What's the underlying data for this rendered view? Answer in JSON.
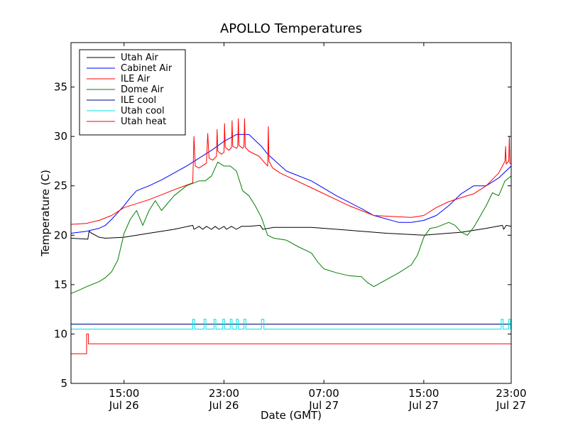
{
  "chart_data": {
    "type": "line",
    "title": "APOLLO Temperatures",
    "xlabel": "Date (GMT)",
    "ylabel": "Temperature (C)",
    "x_unit": "hours since Jul 26 00:00 GMT",
    "xlim": [
      10.75,
      46.0
    ],
    "ylim": [
      5,
      39.5
    ],
    "yticks": [
      5,
      10,
      15,
      20,
      25,
      30,
      35
    ],
    "xticks": [
      {
        "value": 15,
        "line1": "15:00",
        "line2": "Jul 26"
      },
      {
        "value": 23,
        "line1": "23:00",
        "line2": "Jul 26"
      },
      {
        "value": 31,
        "line1": "07:00",
        "line2": "Jul 27"
      },
      {
        "value": 39,
        "line1": "15:00",
        "line2": "Jul 27"
      },
      {
        "value": 47,
        "line1": "23:00",
        "line2": "Jul 27"
      }
    ],
    "grid": false,
    "legend_position": "top-left",
    "series": [
      {
        "name": "Utah Air",
        "color": "#000000",
        "x": [
          10.75,
          12.1,
          12.2,
          12.4,
          13.0,
          13.5,
          15.0,
          17.0,
          19.0,
          20.5,
          20.6,
          21.0,
          21.3,
          21.6,
          22.0,
          22.3,
          22.6,
          23.0,
          23.2,
          23.6,
          24.0,
          24.4,
          25.0,
          25.9,
          26.1,
          27.0,
          30.0,
          33.0,
          36.0,
          39.0,
          42.0,
          44.0,
          45.3,
          45.4,
          45.6,
          46.0
        ],
        "y": [
          19.7,
          19.6,
          20.4,
          20.2,
          19.8,
          19.7,
          19.8,
          20.2,
          20.6,
          21.0,
          20.6,
          20.9,
          20.6,
          20.9,
          20.6,
          20.9,
          20.6,
          20.9,
          20.6,
          20.9,
          20.6,
          20.9,
          20.9,
          21.0,
          20.6,
          20.8,
          20.8,
          20.5,
          20.2,
          20.0,
          20.3,
          20.7,
          21.0,
          20.6,
          21.0,
          20.9
        ]
      },
      {
        "name": "Cabinet Air",
        "color": "#0000ff",
        "x": [
          10.75,
          12.0,
          13.0,
          13.5,
          14.0,
          15.0,
          15.5,
          16.0,
          17.0,
          18.0,
          19.0,
          20.0,
          21.0,
          22.0,
          23.0,
          24.0,
          25.0,
          25.5,
          26.0,
          26.5,
          28.0,
          30.0,
          32.0,
          34.0,
          35.0,
          37.0,
          38.0,
          39.0,
          40.0,
          41.0,
          42.0,
          43.0,
          44.0,
          45.0,
          46.0
        ],
        "y": [
          20.2,
          20.4,
          20.7,
          21.0,
          21.6,
          23.0,
          23.8,
          24.5,
          25.0,
          25.6,
          26.3,
          27.0,
          27.8,
          28.6,
          29.5,
          30.2,
          30.2,
          29.6,
          29.0,
          28.2,
          26.5,
          25.5,
          24.0,
          22.7,
          22.0,
          21.3,
          21.3,
          21.5,
          22.0,
          23.0,
          24.2,
          25.0,
          25.0,
          25.8,
          27.0
        ]
      },
      {
        "name": "ILE Air",
        "color": "#ff0000",
        "x": [
          10.75,
          12.0,
          13.0,
          14.0,
          15.0,
          16.0,
          17.0,
          18.0,
          19.0,
          20.5,
          20.6,
          20.7,
          21.0,
          21.6,
          21.7,
          21.8,
          22.1,
          22.4,
          22.45,
          22.5,
          22.8,
          23.0,
          23.05,
          23.1,
          23.4,
          23.6,
          23.65,
          23.7,
          24.0,
          24.1,
          24.15,
          24.2,
          24.5,
          24.6,
          24.65,
          24.7,
          25.0,
          25.8,
          26.5,
          26.55,
          26.6,
          26.9,
          27.5,
          30.0,
          33.0,
          35.0,
          38.0,
          39.0,
          40.0,
          41.0,
          42.0,
          43.0,
          44.0,
          45.0,
          45.5,
          45.55,
          45.6,
          45.8,
          45.85,
          45.9,
          46.0
        ],
        "y": [
          21.1,
          21.2,
          21.5,
          22.0,
          22.8,
          23.2,
          23.6,
          24.1,
          24.6,
          25.3,
          30.0,
          27.0,
          26.8,
          27.3,
          30.3,
          27.8,
          27.6,
          28.0,
          30.7,
          28.5,
          28.2,
          28.4,
          31.3,
          28.9,
          28.6,
          28.9,
          31.6,
          29.0,
          28.8,
          29.0,
          31.8,
          29.1,
          28.8,
          29.0,
          31.8,
          28.9,
          28.5,
          28.0,
          27.0,
          31.0,
          27.5,
          26.8,
          26.3,
          24.8,
          23.0,
          22.0,
          21.8,
          22.0,
          22.8,
          23.4,
          23.8,
          24.2,
          25.0,
          26.3,
          27.5,
          29.0,
          27.2,
          27.5,
          30.0,
          27.3,
          27.2
        ]
      },
      {
        "name": "Dome Air",
        "color": "#008000",
        "x": [
          10.75,
          11.5,
          12.0,
          13.0,
          13.5,
          14.0,
          14.5,
          15.0,
          15.5,
          16.0,
          16.5,
          17.0,
          17.5,
          18.0,
          19.0,
          20.0,
          21.0,
          21.5,
          22.0,
          22.5,
          23.0,
          23.5,
          24.0,
          24.5,
          25.0,
          25.5,
          26.0,
          26.5,
          27.0,
          28.0,
          29.0,
          30.0,
          30.5,
          31.0,
          32.0,
          33.0,
          34.0,
          34.5,
          35.0,
          36.0,
          37.0,
          38.0,
          38.5,
          39.0,
          39.5,
          40.0,
          41.0,
          41.5,
          42.0,
          42.5,
          43.0,
          44.0,
          44.5,
          45.0,
          45.5,
          46.0
        ],
        "y": [
          14.1,
          14.5,
          14.8,
          15.3,
          15.7,
          16.3,
          17.5,
          20.2,
          21.6,
          22.5,
          21.0,
          22.5,
          23.5,
          22.5,
          24.0,
          25.0,
          25.5,
          25.5,
          26.0,
          27.4,
          27.0,
          27.0,
          26.5,
          24.5,
          24.0,
          23.0,
          21.8,
          20.0,
          19.7,
          19.5,
          18.8,
          18.2,
          17.3,
          16.6,
          16.2,
          15.9,
          15.8,
          15.2,
          14.8,
          15.5,
          16.2,
          17.0,
          18.0,
          19.8,
          20.7,
          20.8,
          21.3,
          21.0,
          20.3,
          20.0,
          20.8,
          23.0,
          24.3,
          24.0,
          25.5,
          26.0
        ]
      },
      {
        "name": "ILE cool",
        "color": "#000080",
        "x": [
          10.75,
          46.0
        ],
        "y": [
          11.0,
          11.0
        ]
      },
      {
        "name": "Utah cool",
        "color": "#00e5e5",
        "x": [
          10.75,
          20.5,
          20.5,
          20.65,
          20.65,
          21.4,
          21.4,
          21.55,
          21.55,
          22.2,
          22.2,
          22.35,
          22.35,
          22.9,
          22.9,
          23.05,
          23.05,
          23.5,
          23.5,
          23.65,
          23.65,
          24.0,
          24.0,
          24.15,
          24.15,
          24.6,
          24.6,
          24.75,
          24.75,
          26.0,
          26.0,
          26.2,
          26.2,
          45.2,
          45.2,
          45.35,
          45.35,
          45.8,
          45.8,
          45.95,
          45.95,
          46.0
        ],
        "y": [
          10.5,
          10.5,
          11.5,
          11.5,
          10.5,
          10.5,
          11.5,
          11.5,
          10.5,
          10.5,
          11.5,
          11.5,
          10.5,
          10.5,
          11.5,
          11.5,
          10.5,
          10.5,
          11.5,
          11.5,
          10.5,
          10.5,
          11.5,
          11.5,
          10.5,
          10.5,
          11.5,
          11.5,
          10.5,
          10.5,
          11.5,
          11.5,
          10.5,
          10.5,
          11.5,
          11.5,
          10.5,
          10.5,
          11.5,
          11.5,
          10.5,
          10.5
        ]
      },
      {
        "name": "Utah heat",
        "color": "#ff0000",
        "x": [
          10.75,
          12.0,
          12.0,
          12.15,
          12.15,
          46.0
        ],
        "y": [
          8.0,
          8.0,
          10.0,
          10.0,
          9.0,
          9.0
        ]
      }
    ]
  }
}
